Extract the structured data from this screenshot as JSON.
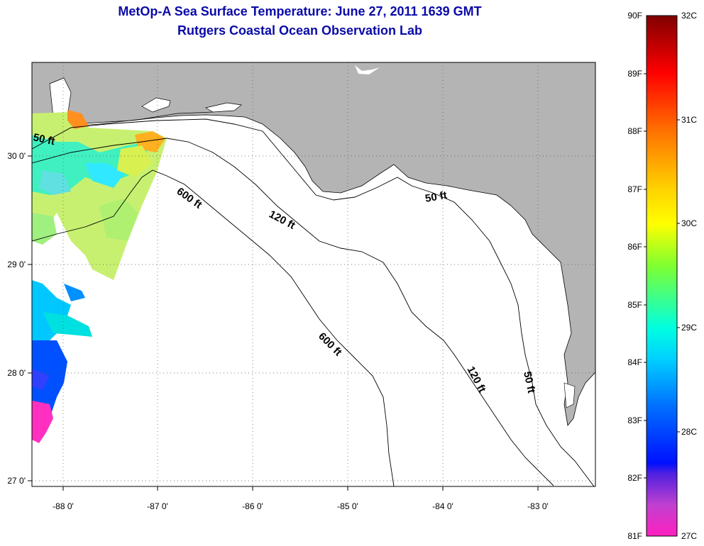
{
  "title": "MetOp-A Sea Surface Temperature:  June 27, 2011 1639 GMT",
  "subtitle": "Rutgers Coastal Ocean Observation Lab",
  "map": {
    "lon_labels": [
      "-88 0'",
      "-87 0'",
      "-86 0'",
      "-85 0'",
      "-84 0'",
      "-83 0'"
    ],
    "lat_labels": [
      "30 0'",
      "29 0'",
      "28 0'",
      "27 0'"
    ],
    "contour_labels": [
      "50 ft",
      "600 ft",
      "120 ft",
      "50 ft",
      "600 ft",
      "120 ft",
      "50 ft"
    ],
    "land_color": "#b4b4b4",
    "ocean_color": "#ffffff"
  },
  "colorbar": {
    "f_labels": [
      "90F",
      "89F",
      "88F",
      "87F",
      "86F",
      "85F",
      "84F",
      "83F",
      "82F",
      "81F"
    ],
    "c_labels": [
      "32C",
      "31C",
      "30C",
      "29C",
      "28C",
      "27C"
    ],
    "stops": [
      "#800000",
      "#ff0000",
      "#ff8000",
      "#ffff00",
      "#80ff40",
      "#00ffff",
      "#0080ff",
      "#0000ff",
      "#8040ff",
      "#ff40c0",
      "#ff20d0"
    ]
  }
}
